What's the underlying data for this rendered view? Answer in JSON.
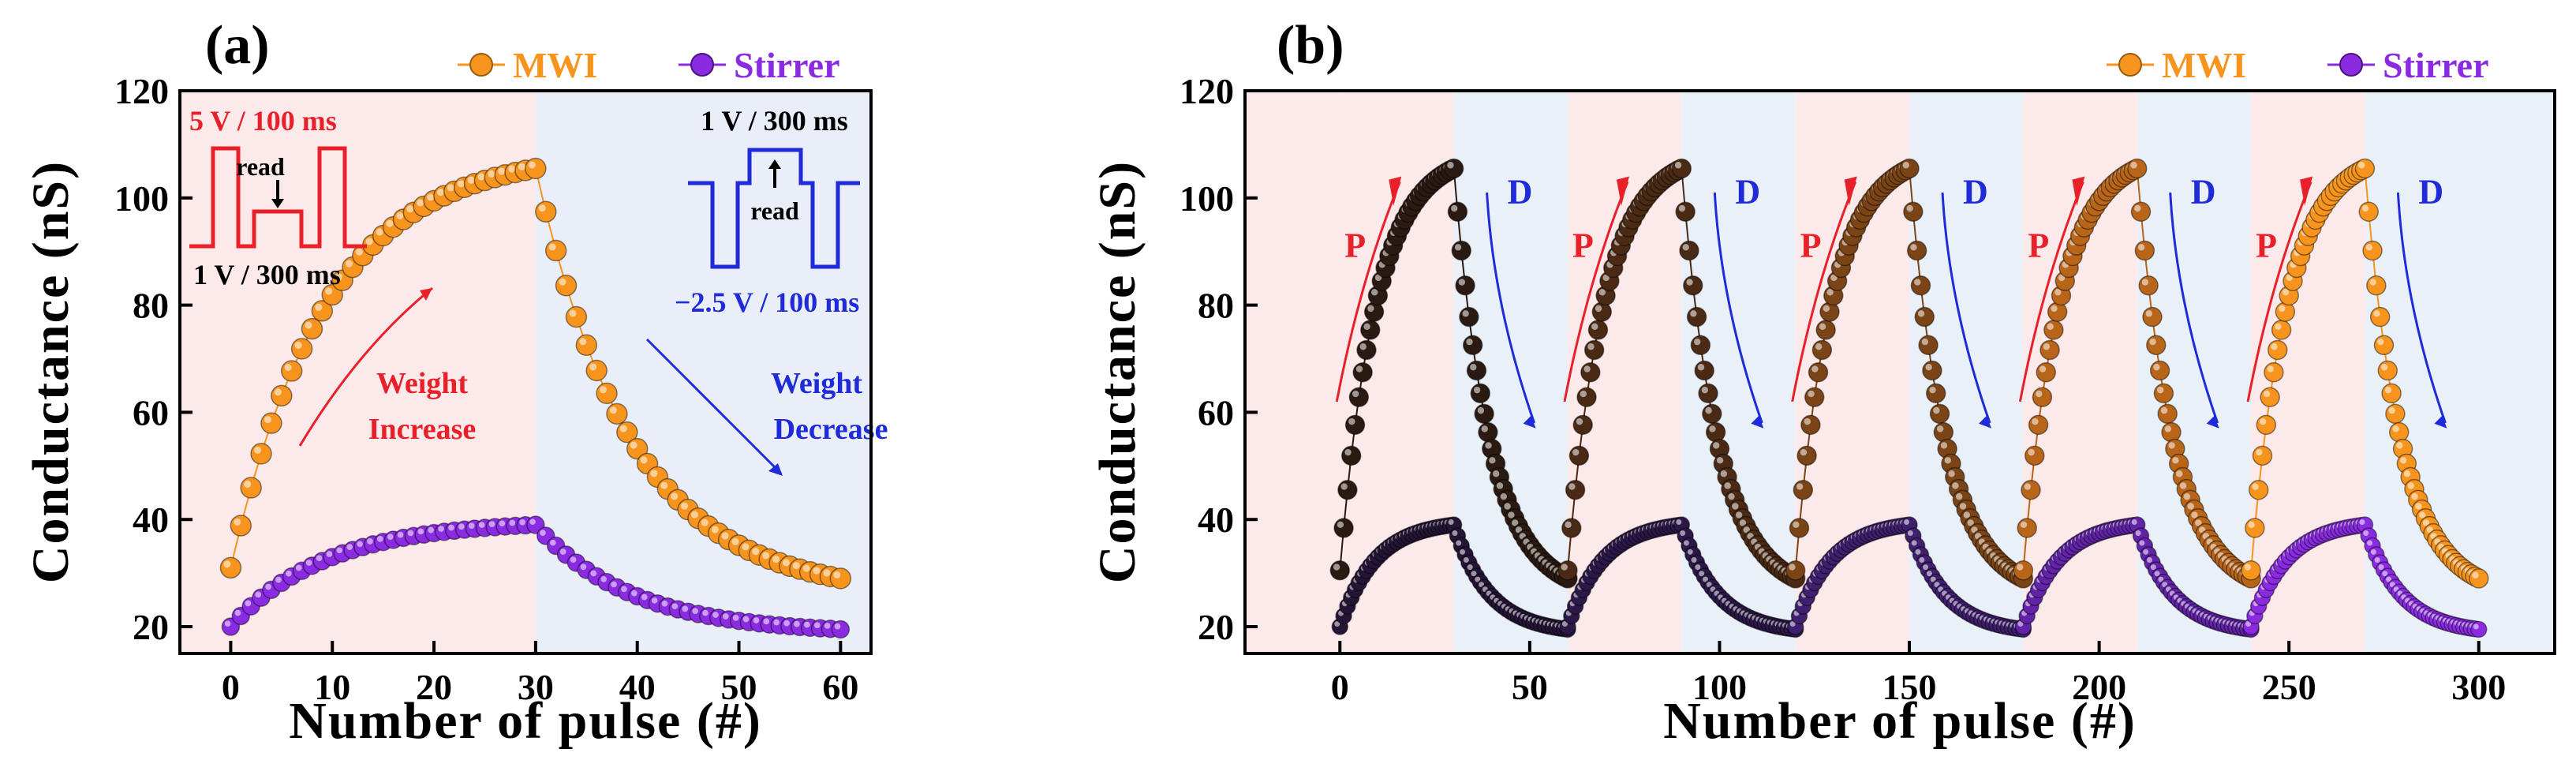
{
  "figure": {
    "panels": [
      {
        "label": "(a)",
        "legend": [
          {
            "name": "MWI",
            "color": "#F7941D"
          },
          {
            "name": "Stirrer",
            "color": "#8A2BE2"
          }
        ],
        "annotations": {
          "pot_pulse": "5 V / 100 ms",
          "pot_read": "1 V / 300 ms",
          "dep_read": "1 V / 300 ms",
          "dep_pulse": "−2.5 V / 100 ms",
          "read_left": "read",
          "read_right": "read",
          "weight_increase_1": "Weight",
          "weight_increase_2": "Increase",
          "weight_decrease_1": "Weight",
          "weight_decrease_2": "Decrease"
        }
      },
      {
        "label": "(b)",
        "legend": [
          {
            "name": "MWI",
            "color": "#F7941D"
          },
          {
            "name": "Stirrer",
            "color": "#8A2BE2"
          }
        ],
        "annotations": {
          "potentiation": "P",
          "depression": "D"
        }
      }
    ]
  },
  "chart_data": [
    {
      "type": "scatter",
      "title": "(a)",
      "xlabel": "Number of pulse (#)",
      "ylabel": "Conductance (nS)",
      "xlim": [
        -5,
        63
      ],
      "ylim": [
        15,
        120
      ],
      "xticks": [
        0,
        10,
        20,
        30,
        40,
        50,
        60
      ],
      "yticks": [
        20,
        40,
        60,
        80,
        100,
        120
      ],
      "shaded_regions": [
        {
          "from": -5,
          "to": 30,
          "color": "#FCE9EA"
        },
        {
          "from": 30,
          "to": 63,
          "color": "#E9EEF8"
        }
      ],
      "series": [
        {
          "name": "MWI",
          "potentiation": {
            "start": 31,
            "end": 105.5,
            "pulses": 30
          },
          "depression": {
            "start": 105.5,
            "end": 29,
            "pulses": 30
          }
        },
        {
          "name": "Stirrer",
          "potentiation": {
            "start": 20,
            "end": 39,
            "pulses": 30
          },
          "depression": {
            "start": 39,
            "end": 19.5,
            "pulses": 30
          }
        }
      ]
    },
    {
      "type": "scatter",
      "title": "(b)",
      "xlabel": "Number of pulse (#)",
      "ylabel": "Conductance (nS)",
      "xlim": [
        -25,
        320
      ],
      "ylim": [
        15,
        120
      ],
      "xticks": [
        0,
        50,
        100,
        150,
        200,
        250,
        300
      ],
      "yticks": [
        20,
        40,
        60,
        80,
        100,
        120
      ],
      "cycles": 5,
      "pulses_per_half_cycle": 30,
      "cycle_colors": [
        "#2B1A12",
        "#4A2A14",
        "#7A4416",
        "#B8651A",
        "#F7941D"
      ],
      "stirrer_cycle_colors": [
        "#241436",
        "#2C1848",
        "#3F1F6E",
        "#6223A8",
        "#8A2BE2"
      ],
      "series": [
        {
          "name": "MWI",
          "min": 29,
          "max": 105.5
        },
        {
          "name": "Stirrer",
          "min": 19.5,
          "max": 39
        }
      ]
    }
  ]
}
